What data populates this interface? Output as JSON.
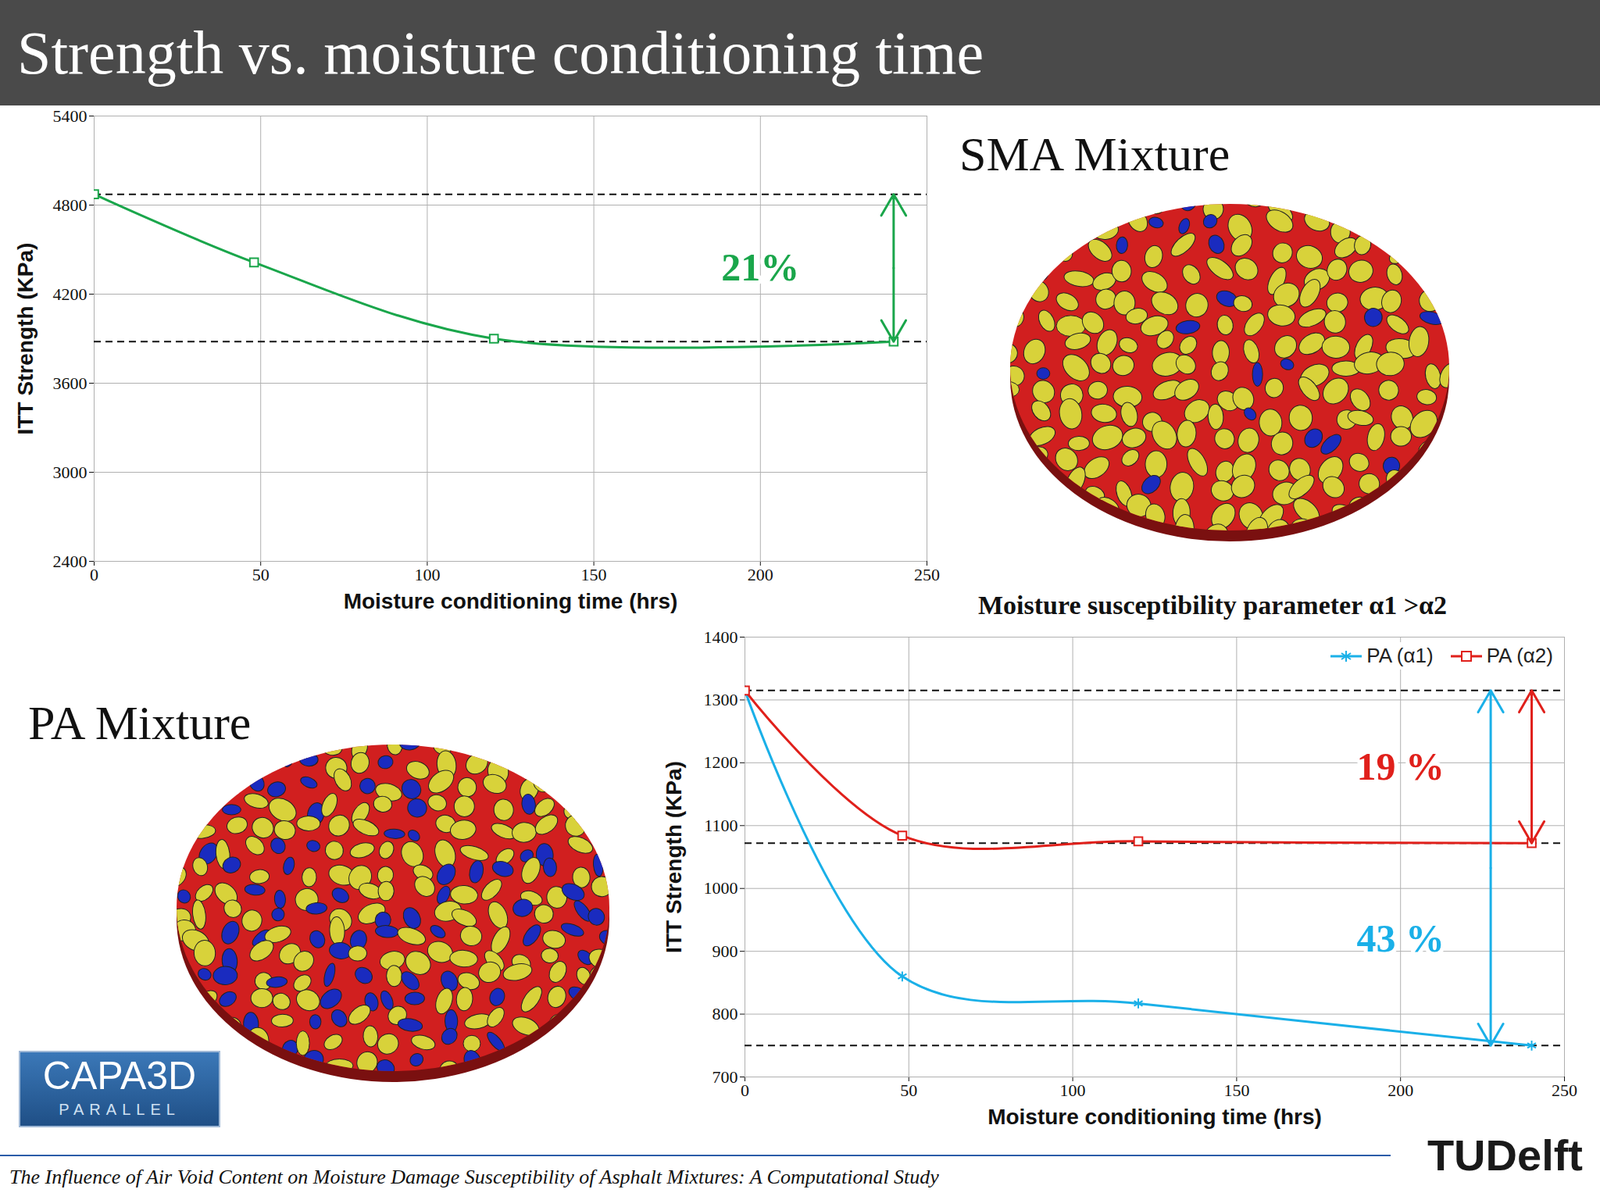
{
  "slide": {
    "title": "Strength vs. moisture conditioning time",
    "panels": [
      {
        "label": "SMA Mixture"
      },
      {
        "label": "PA Mixture"
      }
    ],
    "footer": "The Influence of Air Void Content on Moisture Damage Susceptibility of Asphalt Mixtures: A Computational Study",
    "logos": [
      {
        "text": "CAPA3D",
        "subtext": "PARALLEL"
      },
      {
        "text": "TUDelft"
      }
    ]
  },
  "chart_data": [
    {
      "type": "line",
      "xlabel": "Moisture conditioning time (hrs)",
      "ylabel": "ITT Strength (KPa)",
      "x": [
        0,
        48,
        120,
        240
      ],
      "series": [
        {
          "color": "#1aa64b",
          "marker": "square",
          "values": [
            4873,
            4414,
            3900,
            3880
          ]
        }
      ],
      "xlim": [
        0,
        250
      ],
      "xticks": [
        0,
        50,
        100,
        150,
        200,
        250
      ],
      "ylim": [
        2400,
        5400
      ],
      "yticks": [
        2400,
        3000,
        3600,
        4200,
        4800,
        5400
      ],
      "grid": true,
      "annotations": [
        {
          "text": "21%"
        }
      ]
    },
    {
      "type": "line",
      "title": "Moisture susceptibility parameter α1 >α2",
      "xlabel": "Moisture conditioning time (hrs)",
      "ylabel": "ITT Strength (KPa)",
      "x": [
        0,
        48,
        120,
        240
      ],
      "series": [
        {
          "name": "PA (α1)",
          "color": "#1ab0e8",
          "marker": "asterisk",
          "values": [
            1315,
            860,
            817,
            750
          ]
        },
        {
          "name": "PA (α2)",
          "color": "#e0201b",
          "marker": "square",
          "values": [
            1315,
            1084,
            1075,
            1072
          ]
        }
      ],
      "xlim": [
        0,
        250
      ],
      "xticks": [
        0,
        50,
        100,
        150,
        200,
        250
      ],
      "ylim": [
        700,
        1400
      ],
      "yticks": [
        700,
        800,
        900,
        1000,
        1100,
        1200,
        1300,
        1400
      ],
      "grid": true,
      "legend": "top-right",
      "annotations": [
        {
          "text": "19 %",
          "series": "PA (α2)"
        },
        {
          "text": "43 %",
          "series": "PA (α1)"
        }
      ]
    }
  ]
}
